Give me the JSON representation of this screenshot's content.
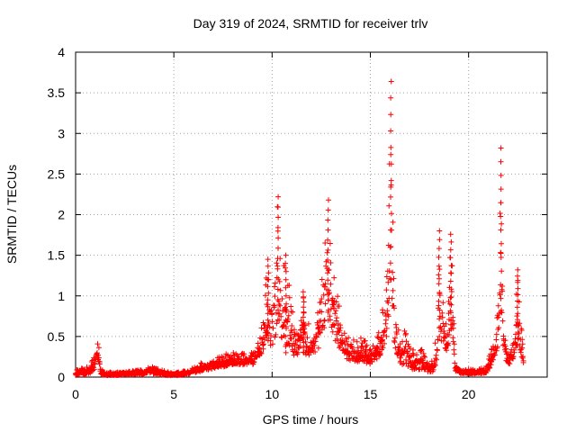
{
  "chart_data": {
    "type": "scatter",
    "title": "Day 319 of 2024, SRMTID for receiver trlv",
    "xlabel": "GPS time / hours",
    "ylabel": "SRMTID / TECUs",
    "xlim": [
      0,
      24
    ],
    "ylim": [
      0,
      4
    ],
    "xticks": [
      0,
      5,
      10,
      15,
      20
    ],
    "yticks": [
      0,
      0.5,
      1,
      1.5,
      2,
      2.5,
      3,
      3.5,
      4
    ],
    "xtick_labels": [
      "0",
      "5",
      "10",
      "15",
      "20"
    ],
    "ytick_labels": [
      "0",
      "0.5",
      "1",
      "1.5",
      "2",
      "2.5",
      "3",
      "3.5",
      "4"
    ],
    "grid": true,
    "marker": "+",
    "color": "#ff0000",
    "series": [
      {
        "name": "SRMTID",
        "envelope_hours": [
          0,
          0.2,
          0.4,
          0.6,
          0.8,
          1.0,
          1.05,
          1.1,
          1.2,
          1.3,
          1.5,
          2.0,
          2.5,
          3.0,
          3.5,
          3.8,
          4.2,
          4.7,
          5.2,
          5.6,
          6.0,
          6.5,
          7.0,
          7.5,
          8.0,
          8.5,
          9.0,
          9.2,
          9.4,
          9.6,
          9.8,
          10.0,
          10.2,
          10.3,
          10.5,
          10.7,
          11.0,
          11.3,
          11.6,
          11.9,
          12.2,
          12.5,
          12.7,
          12.85,
          13.0,
          13.2,
          13.5,
          13.8,
          14.0,
          14.3,
          14.6,
          14.9,
          15.2,
          15.5,
          15.7,
          15.85,
          15.95,
          16.0,
          16.05,
          16.1,
          16.2,
          16.4,
          16.6,
          16.8,
          17.0,
          17.3,
          17.6,
          17.9,
          18.2,
          18.4,
          18.5,
          18.7,
          18.9,
          19.0,
          19.1,
          19.2,
          19.3,
          19.5,
          19.8,
          20.1,
          20.5,
          20.9,
          21.2,
          21.4,
          21.55,
          21.65,
          21.75,
          21.9,
          22.1,
          22.3,
          22.5,
          22.6,
          22.7,
          22.8
        ],
        "envelope_values": [
          0.08,
          0.12,
          0.1,
          0.14,
          0.18,
          0.3,
          0.45,
          0.48,
          0.35,
          0.1,
          0.06,
          0.06,
          0.07,
          0.08,
          0.1,
          0.15,
          0.1,
          0.07,
          0.06,
          0.08,
          0.12,
          0.2,
          0.22,
          0.28,
          0.3,
          0.3,
          0.3,
          0.35,
          0.6,
          1.0,
          1.45,
          1.2,
          1.9,
          2.22,
          1.3,
          1.5,
          0.9,
          0.7,
          1.05,
          0.6,
          0.7,
          1.5,
          2.05,
          2.18,
          1.6,
          1.2,
          0.8,
          0.5,
          0.55,
          0.45,
          0.5,
          0.4,
          0.45,
          0.6,
          1.0,
          1.5,
          2.6,
          3.1,
          3.64,
          2.5,
          1.3,
          0.6,
          0.5,
          0.7,
          0.4,
          0.3,
          0.35,
          0.2,
          0.2,
          0.7,
          1.8,
          1.0,
          0.7,
          1.2,
          1.76,
          1.2,
          0.2,
          0.12,
          0.1,
          0.1,
          0.1,
          0.12,
          0.4,
          0.6,
          1.5,
          2.82,
          0.9,
          0.4,
          0.3,
          0.5,
          1.32,
          1.0,
          0.6,
          0.25
        ],
        "baseline_values": [
          0.02,
          0.03,
          0.03,
          0.04,
          0.05,
          0.1,
          0.2,
          0.22,
          0.1,
          0.03,
          0.02,
          0.02,
          0.03,
          0.03,
          0.03,
          0.05,
          0.03,
          0.02,
          0.02,
          0.03,
          0.05,
          0.08,
          0.1,
          0.12,
          0.15,
          0.15,
          0.15,
          0.18,
          0.25,
          0.35,
          0.45,
          0.35,
          0.5,
          0.7,
          0.35,
          0.3,
          0.25,
          0.25,
          0.3,
          0.25,
          0.3,
          0.4,
          0.6,
          0.7,
          0.6,
          0.45,
          0.3,
          0.2,
          0.2,
          0.18,
          0.2,
          0.15,
          0.2,
          0.25,
          0.35,
          0.5,
          0.8,
          1.0,
          1.2,
          0.8,
          0.45,
          0.2,
          0.15,
          0.15,
          0.1,
          0.08,
          0.1,
          0.06,
          0.06,
          0.2,
          0.5,
          0.4,
          0.3,
          0.4,
          0.6,
          0.4,
          0.08,
          0.05,
          0.04,
          0.04,
          0.04,
          0.05,
          0.15,
          0.25,
          0.5,
          0.8,
          0.4,
          0.2,
          0.15,
          0.2,
          0.4,
          0.35,
          0.25,
          0.1
        ]
      }
    ]
  }
}
